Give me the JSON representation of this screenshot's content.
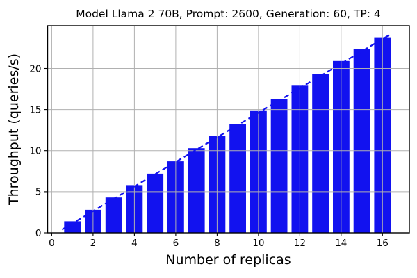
{
  "title": "Model Llama 2 70B, Prompt: 2600, Generation: 60, TP: 4",
  "chart_data": {
    "type": "bar",
    "title": "Model Llama 2 70B, Prompt: 2600, Generation: 60, TP: 4",
    "xlabel": "Number of replicas",
    "ylabel": "Throughput (queries/s)",
    "x": [
      1,
      2,
      3,
      4,
      5,
      6,
      7,
      8,
      9,
      10,
      11,
      12,
      13,
      14,
      15,
      16
    ],
    "values": [
      1.4,
      2.8,
      4.3,
      5.8,
      7.2,
      8.7,
      10.3,
      11.8,
      13.2,
      14.9,
      16.3,
      17.9,
      19.3,
      20.9,
      22.4,
      23.8
    ],
    "bar_width": 0.8,
    "bar_color": "#1212ef",
    "trend_line": {
      "style": "dashed",
      "color": "#1212ef",
      "x1": 0.5,
      "y1": 0.4,
      "x2": 16.45,
      "y2": 24.25
    },
    "xlim": [
      -0.2,
      17.3
    ],
    "ylim": [
      0,
      25.2
    ],
    "xticks": [
      0,
      2,
      4,
      6,
      8,
      10,
      12,
      14,
      16
    ],
    "yticks": [
      0,
      5,
      10,
      15,
      20
    ],
    "grid": true,
    "grid_color": "#b0b0b0",
    "spine_color": "#000000",
    "background_color": "#ffffff",
    "legend": "none"
  }
}
